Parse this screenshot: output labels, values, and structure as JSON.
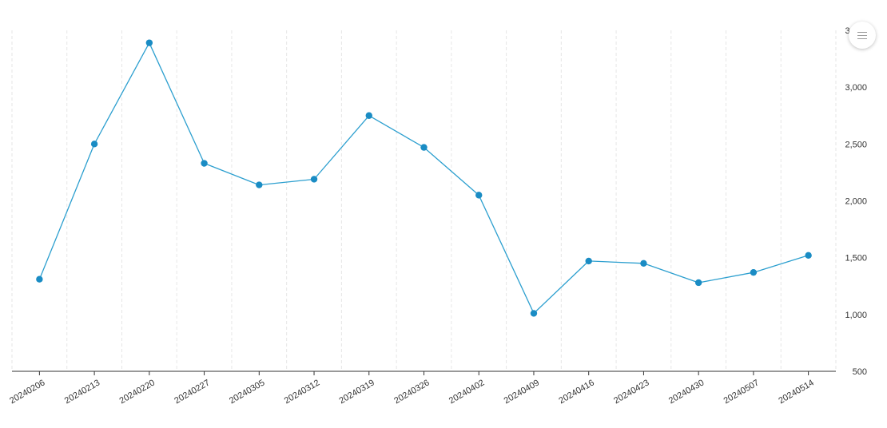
{
  "chart_data": {
    "type": "line",
    "categories": [
      "20240206",
      "20240213",
      "20240220",
      "20240227",
      "20240305",
      "20240312",
      "20240319",
      "20240326",
      "20240402",
      "20240409",
      "20240416",
      "20240423",
      "20240430",
      "20240507",
      "20240514"
    ],
    "series": [
      {
        "values": [
          1310,
          2500,
          3390,
          2330,
          2140,
          2190,
          2750,
          2470,
          2050,
          1010,
          1470,
          1450,
          1280,
          1370,
          1520
        ]
      }
    ],
    "ylim": [
      500,
      3500
    ],
    "y_ticks": [
      "500",
      "1,000",
      "1,500",
      "2,000",
      "2,500",
      "3,000",
      "3,500"
    ],
    "y_axis_position": "right",
    "grid": "vertical dashed",
    "line_color": "#2c9fcf",
    "marker_color": "#1a8cc4",
    "title": "",
    "xlabel": "",
    "ylabel": ""
  },
  "chart_menu": {
    "icon": "menu-icon"
  }
}
